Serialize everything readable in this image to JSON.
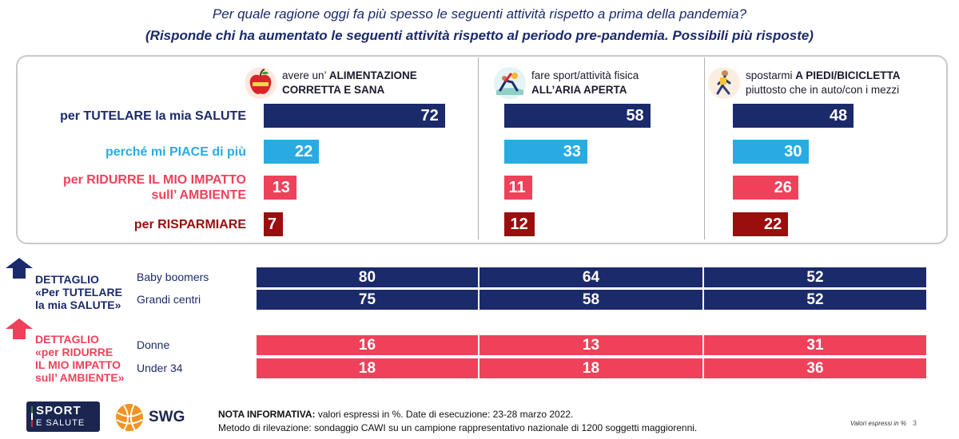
{
  "title": {
    "line1": "Per quale ragione oggi fa più spesso le seguenti attività rispetto a prima della pandemia?",
    "line2": "(Risponde chi ha aumentato le seguenti attività rispetto al periodo pre-pandemia. Possibili più risposte)"
  },
  "colors": {
    "navy": "#1b2a6b",
    "light_blue": "#29abe2",
    "red": "#f0415a",
    "dark_red": "#9b0e0e"
  },
  "chart_data": {
    "type": "bar",
    "columns": [
      {
        "line1": "avere un’ ",
        "line1_bold": "ALIMENTAZIONE",
        "line2_bold": "CORRETTA E SANA",
        "line2": "",
        "icon": "apple-icon"
      },
      {
        "line1": "fare sport/attività fisica",
        "line1_bold": "",
        "line2_bold": "ALL’ARIA APERTA",
        "line2": "",
        "icon": "yoga-outdoor-icon"
      },
      {
        "line1": "spostarmi ",
        "line1_bold": "A PIEDI/BICICLETTA",
        "line2_bold": "",
        "line2": "piuttosto che in auto/con i mezzi",
        "icon": "walking-icon"
      }
    ],
    "categories": [
      "per TUTELARE la mia SALUTE",
      "perché mi PIACE di più",
      "per RIDURRE IL MIO IMPATTO sull’ AMBIENTE",
      "per RISPARMIARE"
    ],
    "category_lines": [
      [
        "per TUTELARE la mia SALUTE"
      ],
      [
        "perché mi PIACE di più"
      ],
      [
        "per RIDURRE IL MIO IMPATTO",
        "sull’ AMBIENTE"
      ],
      [
        "per RISPARMIARE"
      ]
    ],
    "category_colors": [
      "#1b2a6b",
      "#29abe2",
      "#f0415a",
      "#9b0e0e"
    ],
    "values": [
      [
        72,
        58,
        48
      ],
      [
        22,
        33,
        30
      ],
      [
        13,
        11,
        26
      ],
      [
        7,
        12,
        22
      ]
    ]
  },
  "detail": {
    "health": {
      "label": [
        "DETTAGLIO",
        "«Per TUTELARE",
        "la mia SALUTE»"
      ],
      "rows": [
        {
          "name": "Baby boomers",
          "values": [
            80,
            64,
            52
          ]
        },
        {
          "name": "Grandi centri",
          "values": [
            75,
            58,
            52
          ]
        }
      ]
    },
    "environment": {
      "label": [
        "DETTAGLIO",
        "«per RIDURRE",
        "IL MIO IMPATTO",
        "sull’ AMBIENTE»"
      ],
      "rows": [
        {
          "name": "Donne",
          "values": [
            16,
            13,
            31
          ]
        },
        {
          "name": "Under 34",
          "values": [
            18,
            18,
            36
          ]
        }
      ]
    }
  },
  "logos": {
    "sport_line1": "SPORT",
    "sport_line2": "E SALUTE",
    "swg": "SWG"
  },
  "footer": {
    "note_bold": "NOTA INFORMATIVA:",
    "note_rest": " valori espressi in %. Date di esecuzione: 23-28 marzo 2022.",
    "method": "Metodo di rilevazione: sondaggio CAWI su un campione rappresentativo nazionale di 1200 soggetti maggiorenni.",
    "values_note": "Valori espressi in %",
    "page": "3"
  }
}
